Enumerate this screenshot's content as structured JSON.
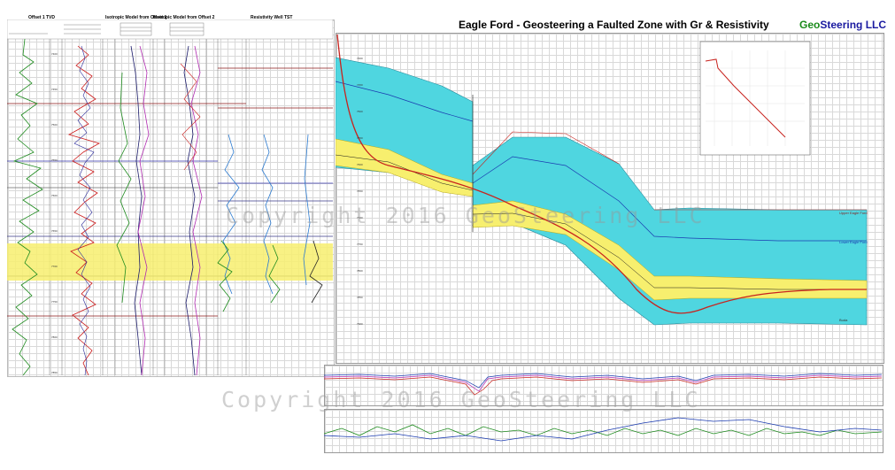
{
  "main_title": "Eagle Ford - Geosteering a Faulted Zone with Gr & Resistivity",
  "brand": {
    "geo": "Geo",
    "steering": "Steering LLC",
    "geo_color": "#1a8a1a",
    "steering_color": "#1a1aa0"
  },
  "watermark": "Copyright 2016 GeoSteering LLC",
  "tracks": [
    {
      "title": "Offset 1 TVD"
    },
    {
      "title": "Isotropic Model from Offset 1"
    },
    {
      "title": "Isotropic Model from Offset 2"
    },
    {
      "title": "Resistivity Well TST"
    }
  ],
  "section_labels": {
    "upper": "Upper Eagle Ford",
    "lower": "Lower Eagle Ford",
    "base": "Buda"
  },
  "colors": {
    "cyan": "#4fd6e0",
    "yellow": "#f7ef6e",
    "wellpath": "#c8231e",
    "grid": "#d9d9d9"
  }
}
